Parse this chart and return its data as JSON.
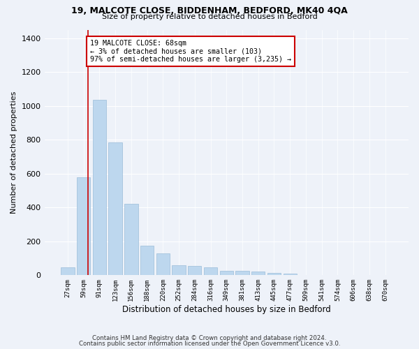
{
  "title1": "19, MALCOTE CLOSE, BIDDENHAM, BEDFORD, MK40 4QA",
  "title2": "Size of property relative to detached houses in Bedford",
  "xlabel": "Distribution of detached houses by size in Bedford",
  "ylabel": "Number of detached properties",
  "categories": [
    "27sqm",
    "59sqm",
    "91sqm",
    "123sqm",
    "156sqm",
    "188sqm",
    "220sqm",
    "252sqm",
    "284sqm",
    "316sqm",
    "349sqm",
    "381sqm",
    "413sqm",
    "445sqm",
    "477sqm",
    "509sqm",
    "541sqm",
    "574sqm",
    "606sqm",
    "638sqm",
    "670sqm"
  ],
  "values": [
    45,
    580,
    1035,
    785,
    420,
    175,
    128,
    60,
    55,
    45,
    28,
    28,
    20,
    15,
    10,
    0,
    0,
    0,
    0,
    0,
    0
  ],
  "bar_color": "#bdd7ee",
  "bar_edge_color": "#9bbcd8",
  "vline_x_idx": 1.5,
  "vline_color": "#cc0000",
  "annotation_text": "19 MALCOTE CLOSE: 68sqm\n← 3% of detached houses are smaller (103)\n97% of semi-detached houses are larger (3,235) →",
  "annotation_box_color": "#ffffff",
  "annotation_box_edge_color": "#cc0000",
  "ylim": [
    0,
    1450
  ],
  "yticks": [
    0,
    200,
    400,
    600,
    800,
    1000,
    1200,
    1400
  ],
  "footer1": "Contains HM Land Registry data © Crown copyright and database right 2024.",
  "footer2": "Contains public sector information licensed under the Open Government Licence v3.0.",
  "bg_color": "#eef2f9",
  "plot_bg_color": "#eef2f9",
  "title1_fontsize": 9,
  "title2_fontsize": 8,
  "ylabel_fontsize": 8,
  "xlabel_fontsize": 8.5
}
